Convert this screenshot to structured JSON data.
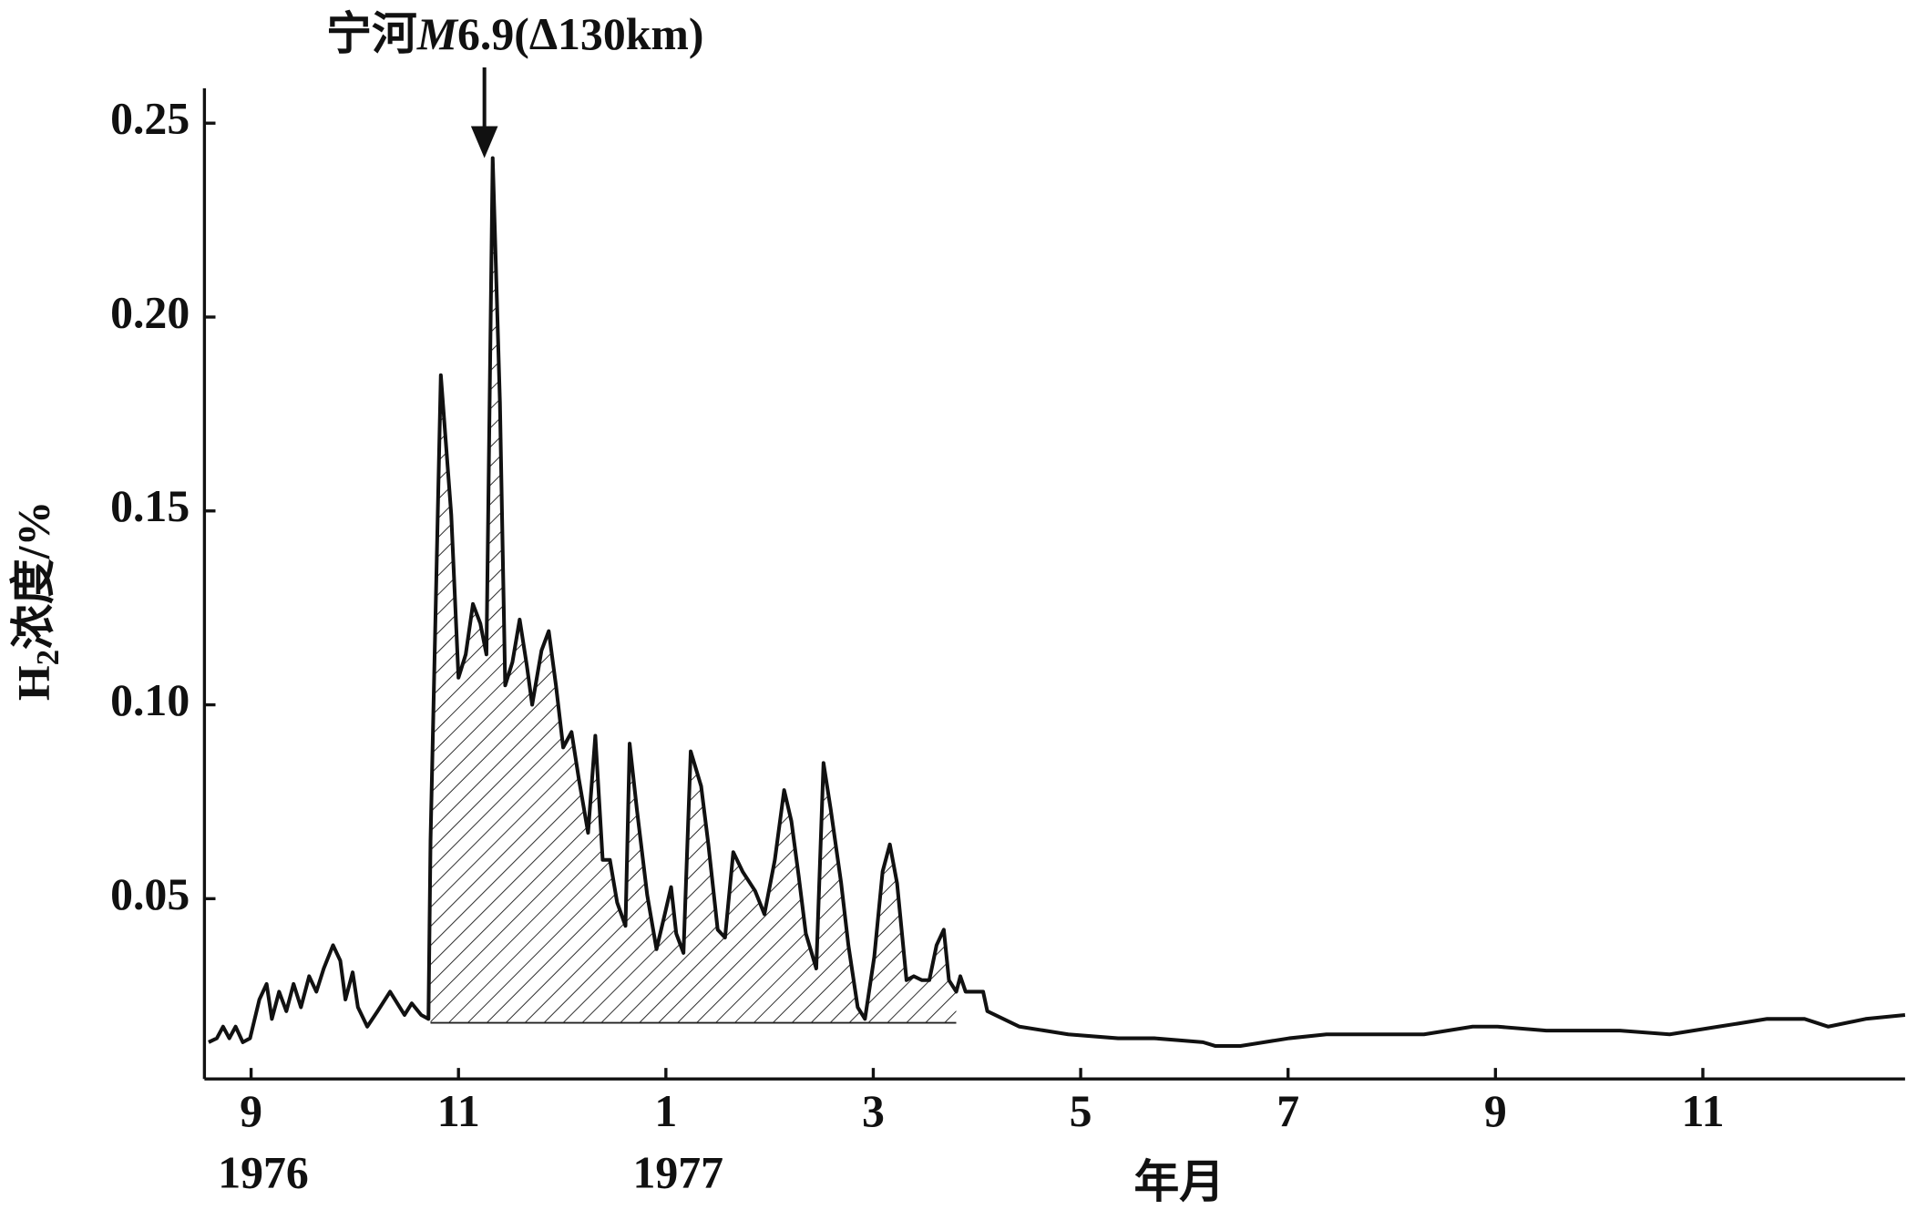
{
  "chart_data": {
    "type": "line",
    "y_label": {
      "main": "H",
      "sub": "2",
      "rest": "浓度/%"
    },
    "x_label": "年月",
    "annotation": {
      "parts": [
        "宁河",
        "M",
        "6.9(Δ130km)"
      ],
      "x": 11.25,
      "y": 0.241
    },
    "color": "#111111",
    "x": [
      8.59,
      8.67,
      8.73,
      8.79,
      8.85,
      8.92,
      8.99,
      9.08,
      9.15,
      9.2,
      9.27,
      9.34,
      9.41,
      9.48,
      9.56,
      9.63,
      9.7,
      9.79,
      9.86,
      9.91,
      9.98,
      10.03,
      10.12,
      10.22,
      10.34,
      10.41,
      10.48,
      10.55,
      10.64,
      10.71,
      10.73,
      10.83,
      10.93,
      11.0,
      11.07,
      11.14,
      11.21,
      11.27,
      11.33,
      11.4,
      11.45,
      11.52,
      11.59,
      11.66,
      11.71,
      11.8,
      11.87,
      11.94,
      12.01,
      12.09,
      12.16,
      12.25,
      12.32,
      12.39,
      12.46,
      12.53,
      12.61,
      12.65,
      12.72,
      12.82,
      12.91,
      12.98,
      13.05,
      13.1,
      13.17,
      13.24,
      13.34,
      13.41,
      13.5,
      13.57,
      13.65,
      13.74,
      13.86,
      13.95,
      14.05,
      14.14,
      14.21,
      14.28,
      14.35,
      14.45,
      14.52,
      14.59,
      14.69,
      14.76,
      14.85,
      14.92,
      15.01,
      15.09,
      15.16,
      15.23,
      15.32,
      15.39,
      15.47,
      15.54,
      15.61,
      15.68,
      15.73,
      15.8,
      15.84,
      15.89,
      15.96,
      16.06,
      16.1,
      16.41,
      16.88,
      17.36,
      17.71,
      18.18,
      18.3,
      18.54,
      19.01,
      19.37,
      19.84,
      20.31,
      20.78,
      21.02,
      21.49,
      22.2,
      22.68,
      23.15,
      23.62,
      23.98,
      24.21,
      24.57,
      24.95
    ],
    "values": [
      0.013,
      0.014,
      0.017,
      0.014,
      0.017,
      0.013,
      0.014,
      0.024,
      0.028,
      0.019,
      0.026,
      0.021,
      0.028,
      0.022,
      0.03,
      0.026,
      0.032,
      0.038,
      0.034,
      0.024,
      0.031,
      0.022,
      0.017,
      0.021,
      0.026,
      0.023,
      0.02,
      0.023,
      0.02,
      0.019,
      0.065,
      0.185,
      0.149,
      0.107,
      0.113,
      0.126,
      0.121,
      0.113,
      0.241,
      0.178,
      0.105,
      0.111,
      0.122,
      0.11,
      0.1,
      0.114,
      0.119,
      0.105,
      0.089,
      0.093,
      0.081,
      0.067,
      0.092,
      0.06,
      0.06,
      0.049,
      0.043,
      0.09,
      0.073,
      0.051,
      0.037,
      0.045,
      0.053,
      0.041,
      0.036,
      0.088,
      0.079,
      0.064,
      0.042,
      0.04,
      0.062,
      0.057,
      0.052,
      0.046,
      0.06,
      0.078,
      0.07,
      0.056,
      0.041,
      0.032,
      0.085,
      0.073,
      0.054,
      0.038,
      0.022,
      0.019,
      0.035,
      0.057,
      0.064,
      0.054,
      0.029,
      0.03,
      0.029,
      0.029,
      0.038,
      0.042,
      0.029,
      0.026,
      0.03,
      0.026,
      0.026,
      0.026,
      0.021,
      0.017,
      0.015,
      0.014,
      0.014,
      0.013,
      0.012,
      0.012,
      0.014,
      0.015,
      0.015,
      0.015,
      0.017,
      0.017,
      0.016,
      0.016,
      0.015,
      0.017,
      0.019,
      0.019,
      0.017,
      0.019,
      0.02
    ],
    "hatch": {
      "from": 10.73,
      "to": 15.8,
      "baseline": 0.018
    },
    "xlim": [
      8.55,
      24.95
    ],
    "ylim": [
      0.0035,
      0.259
    ],
    "xticks": [
      {
        "value": 9,
        "label": "9"
      },
      {
        "value": 11,
        "label": "11"
      },
      {
        "value": 13,
        "label": "1"
      },
      {
        "value": 15,
        "label": "3"
      },
      {
        "value": 17,
        "label": "5"
      },
      {
        "value": 19,
        "label": "7"
      },
      {
        "value": 21,
        "label": "9"
      },
      {
        "value": 23,
        "label": "11"
      }
    ],
    "year_labels": [
      {
        "value": 9,
        "label": "1976"
      },
      {
        "value": 13,
        "label": "1977"
      }
    ],
    "yticks": [
      0.05,
      {
        "value": 0.1,
        "label": "0.10"
      },
      0.15,
      {
        "value": 0.2,
        "label": "0.20"
      },
      0.25
    ]
  }
}
